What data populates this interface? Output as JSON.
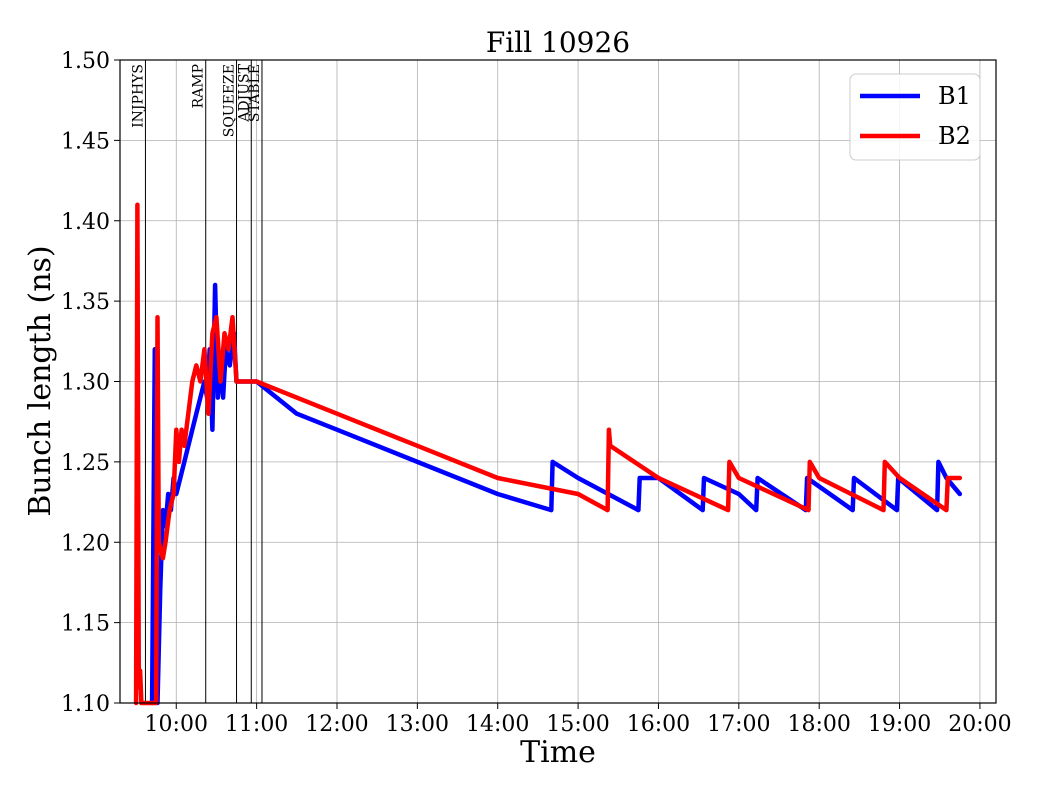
{
  "chart_data": {
    "type": "line",
    "title": "Fill 10926",
    "xlabel": "Time",
    "ylabel": "Bunch length (ns)",
    "xlim": [
      "09:18",
      "20:12"
    ],
    "ylim": [
      1.1,
      1.5
    ],
    "grid": true,
    "legend_position": "top-right",
    "x_ticks": [
      "10:00",
      "11:00",
      "12:00",
      "13:00",
      "14:00",
      "15:00",
      "16:00",
      "17:00",
      "18:00",
      "19:00",
      "20:00"
    ],
    "y_ticks": [
      1.1,
      1.15,
      1.2,
      1.25,
      1.3,
      1.35,
      1.4,
      1.45,
      1.5
    ],
    "y_tick_labels": [
      "1.10",
      "1.15",
      "1.20",
      "1.25",
      "1.30",
      "1.35",
      "1.40",
      "1.45",
      "1.50"
    ],
    "phases": [
      {
        "label": "INJPHYS",
        "time": "09:37"
      },
      {
        "label": "RAMP",
        "time": "10:22"
      },
      {
        "label": "SQUEEZE",
        "time": "10:45"
      },
      {
        "label": "ADJUST",
        "time": "10:56"
      },
      {
        "label": "STABLE",
        "time": "11:04"
      }
    ],
    "series": [
      {
        "name": "B1",
        "color": "#0000ff",
        "points": [
          [
            "09:42",
            1.1
          ],
          [
            "09:44",
            1.32
          ],
          [
            "09:46",
            1.1
          ],
          [
            "09:48",
            1.17
          ],
          [
            "09:50",
            1.22
          ],
          [
            "09:52",
            1.21
          ],
          [
            "09:54",
            1.23
          ],
          [
            "09:56",
            1.22
          ],
          [
            "09:58",
            1.24
          ],
          [
            "10:00",
            1.23
          ],
          [
            "10:03",
            1.24
          ],
          [
            "10:06",
            1.25
          ],
          [
            "10:09",
            1.26
          ],
          [
            "10:12",
            1.27
          ],
          [
            "10:15",
            1.28
          ],
          [
            "10:18",
            1.29
          ],
          [
            "10:21",
            1.3
          ],
          [
            "10:23",
            1.29
          ],
          [
            "10:25",
            1.32
          ],
          [
            "10:27",
            1.27
          ],
          [
            "10:29",
            1.36
          ],
          [
            "10:31",
            1.29
          ],
          [
            "10:33",
            1.31
          ],
          [
            "10:35",
            1.29
          ],
          [
            "10:37",
            1.32
          ],
          [
            "10:40",
            1.31
          ],
          [
            "10:43",
            1.33
          ],
          [
            "10:45",
            1.3
          ],
          [
            "10:50",
            1.3
          ],
          [
            "11:00",
            1.3
          ],
          [
            "11:30",
            1.28
          ],
          [
            "12:00",
            1.27
          ],
          [
            "13:00",
            1.25
          ],
          [
            "14:00",
            1.23
          ],
          [
            "14:40",
            1.22
          ],
          [
            "14:41",
            1.25
          ],
          [
            "15:00",
            1.24
          ],
          [
            "15:45",
            1.22
          ],
          [
            "15:46",
            1.24
          ],
          [
            "16:00",
            1.24
          ],
          [
            "16:33",
            1.22
          ],
          [
            "16:34",
            1.24
          ],
          [
            "17:00",
            1.23
          ],
          [
            "17:13",
            1.22
          ],
          [
            "17:14",
            1.24
          ],
          [
            "17:50",
            1.22
          ],
          [
            "17:51",
            1.24
          ],
          [
            "18:25",
            1.22
          ],
          [
            "18:26",
            1.24
          ],
          [
            "18:58",
            1.22
          ],
          [
            "18:59",
            1.24
          ],
          [
            "19:28",
            1.22
          ],
          [
            "19:29",
            1.25
          ],
          [
            "19:35",
            1.24
          ],
          [
            "19:45",
            1.23
          ]
        ]
      },
      {
        "name": "B2",
        "color": "#ff0000",
        "points": [
          [
            "09:30",
            1.1
          ],
          [
            "09:31",
            1.41
          ],
          [
            "09:32",
            1.11
          ],
          [
            "09:33",
            1.12
          ],
          [
            "09:34",
            1.1
          ],
          [
            "09:45",
            1.1
          ],
          [
            "09:46",
            1.34
          ],
          [
            "09:47",
            1.2
          ],
          [
            "09:50",
            1.19
          ],
          [
            "09:52",
            1.2
          ],
          [
            "09:55",
            1.22
          ],
          [
            "09:58",
            1.23
          ],
          [
            "10:00",
            1.27
          ],
          [
            "10:02",
            1.25
          ],
          [
            "10:04",
            1.27
          ],
          [
            "10:06",
            1.26
          ],
          [
            "10:09",
            1.28
          ],
          [
            "10:12",
            1.3
          ],
          [
            "10:15",
            1.31
          ],
          [
            "10:18",
            1.3
          ],
          [
            "10:21",
            1.32
          ],
          [
            "10:24",
            1.28
          ],
          [
            "10:27",
            1.33
          ],
          [
            "10:30",
            1.34
          ],
          [
            "10:33",
            1.3
          ],
          [
            "10:36",
            1.33
          ],
          [
            "10:39",
            1.32
          ],
          [
            "10:42",
            1.34
          ],
          [
            "10:45",
            1.3
          ],
          [
            "11:00",
            1.3
          ],
          [
            "12:00",
            1.28
          ],
          [
            "13:00",
            1.26
          ],
          [
            "14:00",
            1.24
          ],
          [
            "15:00",
            1.23
          ],
          [
            "15:22",
            1.22
          ],
          [
            "15:23",
            1.27
          ],
          [
            "15:24",
            1.26
          ],
          [
            "16:00",
            1.24
          ],
          [
            "16:52",
            1.22
          ],
          [
            "16:53",
            1.25
          ],
          [
            "17:00",
            1.24
          ],
          [
            "17:52",
            1.22
          ],
          [
            "17:53",
            1.25
          ],
          [
            "18:00",
            1.24
          ],
          [
            "18:48",
            1.22
          ],
          [
            "18:49",
            1.25
          ],
          [
            "19:00",
            1.24
          ],
          [
            "19:35",
            1.22
          ],
          [
            "19:36",
            1.24
          ],
          [
            "19:45",
            1.24
          ]
        ]
      }
    ]
  }
}
